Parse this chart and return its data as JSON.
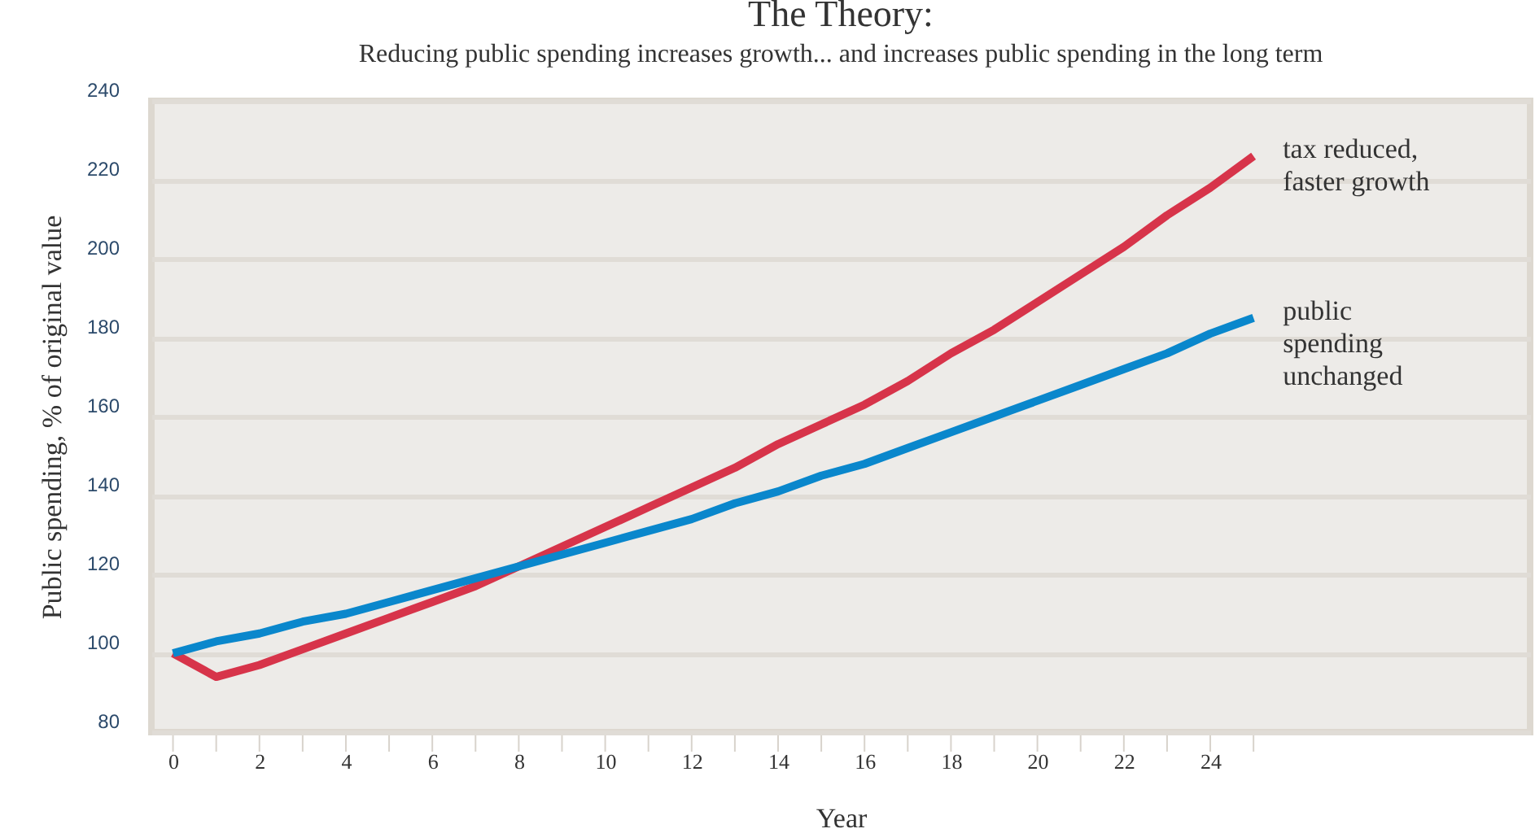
{
  "chart_data": {
    "type": "line",
    "title": "The Theory:",
    "subtitle": "Reducing public spending increases growth... and increases public spending in the long term",
    "xlabel": "Year",
    "ylabel": "Public spending, % of original value",
    "x": [
      0,
      1,
      2,
      3,
      4,
      5,
      6,
      7,
      8,
      9,
      10,
      11,
      12,
      13,
      14,
      15,
      16,
      17,
      18,
      19,
      20,
      21,
      22,
      23,
      24,
      25
    ],
    "series": [
      {
        "name": "tax reduced,\nfaster growth",
        "color": "#d7344a",
        "values": [
          100,
          94,
          97,
          101,
          105,
          109,
          113,
          117,
          122,
          127,
          132,
          137,
          142,
          147,
          153,
          158,
          163,
          169,
          176,
          182,
          189,
          196,
          203,
          211,
          218,
          226
        ]
      },
      {
        "name": "public\nspending\nunchanged",
        "color": "#0a87cc",
        "values": [
          100,
          103,
          105,
          108,
          110,
          113,
          116,
          119,
          122,
          125,
          128,
          131,
          134,
          138,
          141,
          145,
          148,
          152,
          156,
          160,
          164,
          168,
          172,
          176,
          181,
          185
        ]
      }
    ],
    "xlim": [
      -0.5,
      31.4
    ],
    "ylim": [
      80,
      240
    ],
    "xticks": [
      0,
      {
        "value": 1,
        "label": null
      },
      2,
      {
        "value": 3,
        "label": null
      },
      4,
      {
        "value": 5,
        "label": null
      },
      6,
      {
        "value": 7,
        "label": null
      },
      8,
      {
        "value": 9,
        "label": null
      },
      10,
      {
        "value": 11,
        "label": null
      },
      12,
      {
        "value": 13,
        "label": null
      },
      14,
      {
        "value": 15,
        "label": null
      },
      16,
      {
        "value": 17,
        "label": null
      },
      18,
      {
        "value": 19,
        "label": null
      },
      20,
      {
        "value": 21,
        "label": null
      },
      22,
      {
        "value": 23,
        "label": null
      },
      24,
      {
        "value": 25,
        "label": null
      }
    ],
    "yticks": [
      80,
      100,
      120,
      140,
      160,
      180,
      200,
      220,
      240
    ],
    "grid": "y",
    "legend": false,
    "line_style": "solid",
    "marker": "none"
  }
}
